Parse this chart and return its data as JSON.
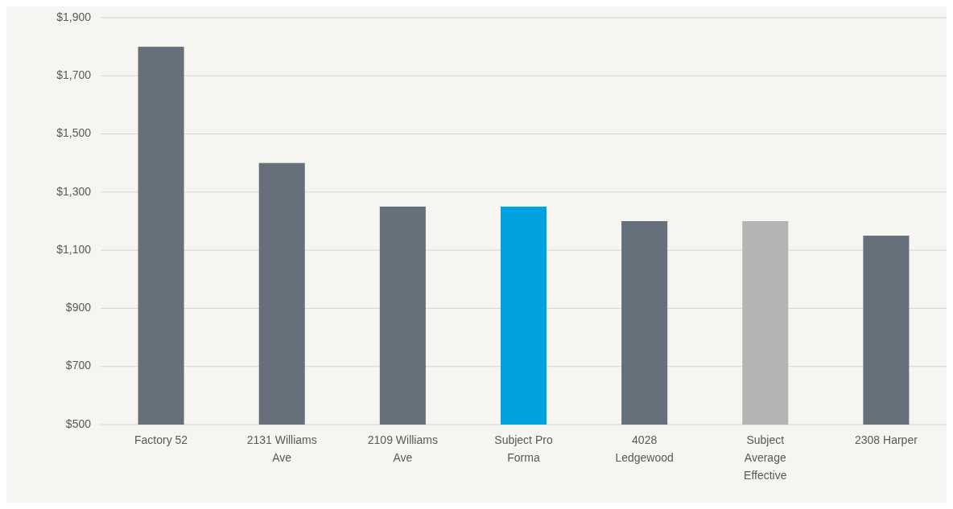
{
  "chart_data": {
    "type": "bar",
    "categories": [
      "Factory 52",
      "2131 Williams Ave",
      "2109 Williams Ave",
      "Subject Pro Forma",
      "4028 Ledgewood",
      "Subject Average Effective",
      "2308 Harper"
    ],
    "values": [
      1800,
      1400,
      1250,
      1250,
      1200,
      1200,
      1150
    ],
    "colors": [
      "#66707a",
      "#66707a",
      "#66707a",
      "#00a3e0",
      "#66707a",
      "#b4b4b4",
      "#66707a"
    ],
    "ylim": [
      500,
      1900
    ],
    "yticks": [
      {
        "value": 500,
        "label": "$500"
      },
      {
        "value": 700,
        "label": "$700"
      },
      {
        "value": 900,
        "label": "$900"
      },
      {
        "value": 1100,
        "label": "$1,100"
      },
      {
        "value": 1300,
        "label": "$1,300"
      },
      {
        "value": 1500,
        "label": "$1,500"
      },
      {
        "value": 1700,
        "label": "$1,700"
      },
      {
        "value": 1900,
        "label": "$1,900"
      }
    ],
    "grid": true
  }
}
